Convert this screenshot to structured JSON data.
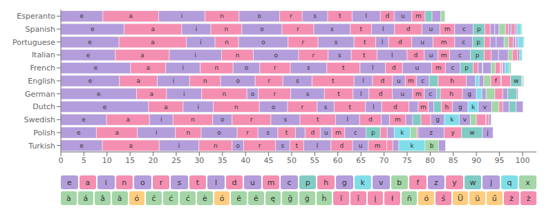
{
  "chart_data": {
    "type": "bar",
    "orientation": "horizontal",
    "stacked": true,
    "grid": false,
    "legend": "bottom",
    "categories": [
      "Esperanto",
      "Spanish",
      "Portuguese",
      "Italian",
      "French",
      "English",
      "German",
      "Dutch",
      "Swedish",
      "Polish",
      "Turkish"
    ],
    "xlim": [
      0,
      103
    ],
    "xticks": [
      0,
      5,
      10,
      15,
      20,
      25,
      30,
      35,
      40,
      45,
      50,
      55,
      60,
      65,
      70,
      75,
      80,
      85,
      90,
      95,
      100
    ],
    "series": [
      {
        "name": "e",
        "color": "#b39ddb",
        "values": [
          9.1,
          13.7,
          12.6,
          11.8,
          15.1,
          12.7,
          16.4,
          19.0,
          9.9,
          7.7,
          9.0
        ],
        "value_labels": [
          "e",
          "e",
          "e",
          "e",
          "e",
          "e",
          "e",
          "e",
          "e",
          "e",
          "e"
        ]
      },
      {
        "name": "a",
        "color": "#f48fb1",
        "values": [
          12.1,
          12.5,
          14.6,
          11.7,
          7.6,
          8.2,
          6.5,
          7.5,
          9.3,
          8.9,
          12.3
        ],
        "value_labels": [
          "a",
          "a",
          "a",
          "a",
          "a",
          "a",
          "a",
          "a",
          "a",
          "a",
          "a"
        ]
      },
      {
        "name": "i",
        "color": "#b39ddb",
        "values": [
          10.0,
          6.3,
          6.2,
          11.3,
          7.5,
          7.0,
          7.6,
          6.5,
          5.1,
          8.2,
          8.6
        ],
        "value_labels": [
          "i",
          "i",
          "i",
          "i",
          "i",
          "i",
          "i",
          "i",
          "i",
          "i",
          "i"
        ]
      },
      {
        "name": "n",
        "color": "#f48fb1",
        "values": [
          7.4,
          6.7,
          5.1,
          6.9,
          7.1,
          6.7,
          9.8,
          10.0,
          8.6,
          5.6,
          7.2
        ],
        "value_labels": [
          "n",
          "n",
          "n",
          "n",
          "n",
          "n",
          "n",
          "n",
          "n",
          "n",
          "n"
        ]
      },
      {
        "name": "o",
        "color": "#b39ddb",
        "values": [
          8.8,
          8.7,
          10.7,
          9.8,
          5.8,
          7.5,
          2.5,
          6.1,
          4.2,
          7.8,
          2.5
        ],
        "value_labels": [
          "o",
          "o",
          "o",
          "o",
          "o",
          "o",
          "o",
          "o",
          "o",
          "o",
          "o"
        ]
      },
      {
        "name": "r",
        "color": "#f48fb1",
        "values": [
          4.9,
          6.9,
          6.5,
          6.4,
          6.6,
          6.0,
          7.0,
          6.4,
          8.4,
          4.5,
          6.9
        ],
        "value_labels": [
          "r",
          "r",
          "r",
          "r",
          "r",
          "r",
          "r",
          "r",
          "r",
          "r",
          "r"
        ]
      },
      {
        "name": "s",
        "color": "#b39ddb",
        "values": [
          5.5,
          7.9,
          7.8,
          5.0,
          7.9,
          6.3,
          7.3,
          3.7,
          6.3,
          4.3,
          3.1
        ],
        "value_labels": [
          "s",
          "s",
          "s",
          "s",
          "s",
          "s",
          "s",
          "s",
          "s",
          "s",
          "s"
        ]
      },
      {
        "name": "t",
        "color": "#f48fb1",
        "values": [
          5.3,
          4.6,
          4.7,
          5.6,
          7.2,
          9.1,
          6.2,
          6.8,
          7.7,
          3.8,
          3.0
        ],
        "value_labels": [
          "t",
          "t",
          "t",
          "t",
          "t",
          "t",
          "t",
          "t",
          "t",
          "t",
          "t"
        ]
      },
      {
        "name": "l",
        "color": "#b39ddb",
        "values": [
          6.1,
          5.0,
          2.8,
          6.5,
          5.5,
          4.0,
          3.4,
          3.5,
          5.2,
          2.1,
          5.9
        ],
        "value_labels": [
          "l",
          "l",
          "l",
          "l",
          "l",
          "l",
          "l",
          "l",
          "l",
          null,
          "l"
        ]
      },
      {
        "name": "d",
        "color": "#f48fb1",
        "values": [
          3.0,
          5.9,
          5.0,
          3.7,
          3.7,
          4.3,
          5.1,
          5.9,
          4.7,
          3.3,
          4.7
        ],
        "value_labels": [
          "d",
          "d",
          "d",
          "d",
          "d",
          "d",
          "d",
          "d",
          "d",
          "d",
          "d"
        ]
      },
      {
        "name": "u",
        "color": "#b39ddb",
        "values": [
          3.8,
          3.9,
          4.6,
          3.0,
          6.3,
          2.8,
          4.4,
          2.0,
          1.8,
          2.5,
          3.4
        ],
        "value_labels": [
          "u",
          "u",
          "u",
          "u",
          "u",
          "u",
          "u",
          null,
          null,
          "u",
          "u"
        ]
      },
      {
        "name": "m",
        "color": "#f48fb1",
        "values": [
          2.9,
          3.2,
          4.7,
          2.5,
          3.0,
          2.4,
          2.5,
          2.2,
          3.5,
          2.8,
          4.0
        ],
        "value_labels": [
          "m",
          "m",
          "m",
          "m",
          "m",
          "m",
          "m",
          "m",
          "m",
          "m",
          "m"
        ]
      },
      {
        "name": "c",
        "color": "#b39ddb",
        "values": [
          0.0,
          4.0,
          3.9,
          4.5,
          3.2,
          2.8,
          2.7,
          1.2,
          1.5,
          4.6,
          0.0
        ],
        "value_labels": [
          null,
          "c",
          "c",
          "c",
          "c",
          "c",
          "c",
          null,
          null,
          "c",
          null
        ]
      },
      {
        "name": "p",
        "color": "#80cbc4",
        "values": [
          1.5,
          2.5,
          2.5,
          3.0,
          2.8,
          1.9,
          0.8,
          1.6,
          1.8,
          3.1,
          0.0
        ],
        "value_labels": [
          null,
          "p",
          "p",
          "p",
          "p",
          null,
          null,
          null,
          null,
          "p",
          null
        ]
      },
      {
        "name": "h",
        "color": "#f48fb1",
        "values": [
          0.0,
          1.2,
          1.3,
          1.5,
          1.1,
          6.1,
          4.8,
          2.4,
          2.1,
          1.5,
          1.3
        ],
        "value_labels": [
          null,
          null,
          null,
          null,
          null,
          "h",
          "h",
          "h",
          null,
          null,
          null
        ]
      },
      {
        "name": "g",
        "color": "#b39ddb",
        "values": [
          0.0,
          1.0,
          1.3,
          1.6,
          0.9,
          2.0,
          3.0,
          3.4,
          3.0,
          1.5,
          1.3
        ],
        "value_labels": [
          null,
          null,
          null,
          null,
          null,
          null,
          "g",
          "g",
          "g",
          null,
          null
        ]
      },
      {
        "name": "k",
        "color": "#80deea",
        "values": [
          0.0,
          0.0,
          0.0,
          0.0,
          0.1,
          0.8,
          1.2,
          2.2,
          3.2,
          3.5,
          5.7
        ],
        "value_labels": [
          null,
          null,
          null,
          null,
          null,
          null,
          null,
          "k",
          "k",
          "k",
          "k"
        ]
      },
      {
        "name": "v",
        "color": "#b39ddb",
        "values": [
          1.9,
          0.9,
          1.7,
          2.1,
          1.8,
          1.0,
          0.9,
          2.9,
          2.4,
          0.0,
          0.0
        ],
        "value_labels": [
          null,
          null,
          null,
          null,
          null,
          null,
          null,
          "v",
          "v",
          null,
          null
        ]
      },
      {
        "name": "b",
        "color": "#a5d6a7",
        "values": [
          0.9,
          1.4,
          1.0,
          0.9,
          0.9,
          1.5,
          1.9,
          1.6,
          1.3,
          1.4,
          2.9
        ],
        "value_labels": [
          null,
          null,
          null,
          null,
          null,
          null,
          null,
          null,
          null,
          null,
          "b"
        ]
      },
      {
        "name": "f",
        "color": "#f48fb1",
        "values": [
          0.0,
          0.7,
          1.0,
          1.1,
          1.1,
          2.2,
          1.7,
          0.8,
          2.0,
          0.3,
          0.0
        ],
        "value_labels": [
          null,
          null,
          null,
          null,
          null,
          "f",
          null,
          null,
          null,
          null,
          null
        ]
      },
      {
        "name": "z",
        "color": "#b39ddb",
        "values": [
          0.0,
          0.5,
          0.5,
          0.5,
          0.1,
          0.1,
          1.1,
          1.4,
          0.1,
          5.6,
          1.5
        ],
        "value_labels": [
          null,
          null,
          null,
          null,
          null,
          null,
          null,
          null,
          null,
          "z",
          null
        ]
      },
      {
        "name": "y",
        "color": "#f48fb1",
        "values": [
          0.0,
          0.9,
          0.1,
          0.0,
          0.3,
          2.0,
          0.0,
          0.0,
          0.6,
          3.8,
          0.0
        ],
        "value_labels": [
          null,
          null,
          null,
          null,
          null,
          null,
          null,
          null,
          null,
          "y",
          null
        ]
      },
      {
        "name": "w",
        "color": "#80cbc4",
        "values": [
          0.0,
          0.0,
          0.0,
          0.0,
          0.1,
          2.4,
          1.9,
          1.5,
          0.0,
          4.5,
          0.0
        ],
        "value_labels": [
          null,
          null,
          null,
          null,
          null,
          "w",
          null,
          null,
          null,
          "w",
          null
        ]
      },
      {
        "name": "j",
        "color": "#b39ddb",
        "values": [
          0.0,
          0.4,
          0.4,
          0.0,
          0.5,
          0.2,
          0.3,
          1.5,
          0.5,
          2.3,
          0.0
        ],
        "value_labels": [
          null,
          null,
          null,
          null,
          null,
          null,
          null,
          null,
          null,
          "j",
          null
        ]
      },
      {
        "name": "q",
        "color": "#80deea",
        "values": [
          0.0,
          0.9,
          1.2,
          0.5,
          0.9,
          0.1,
          0.0,
          0.0,
          0.0,
          0.0,
          0.0
        ],
        "value_labels": [
          null,
          null,
          null,
          null,
          null,
          null,
          null,
          null,
          null,
          null,
          null
        ]
      },
      {
        "name": "x",
        "color": "#a5d6a7",
        "values": [
          0.0,
          0.2,
          0.2,
          0.0,
          0.4,
          0.2,
          0.0,
          0.0,
          0.1,
          0.0,
          0.0
        ],
        "value_labels": [
          null,
          null,
          null,
          null,
          null,
          null,
          null,
          null,
          null,
          null,
          null
        ]
      }
    ],
    "annotations": [
      {
        "text": "à",
        "color": "#a5d6a7"
      },
      {
        "text": "á",
        "color": "#a5d6a7"
      },
      {
        "text": "â",
        "color": "#a5d6a7"
      },
      {
        "text": "ã",
        "color": "#a5d6a7"
      },
      {
        "text": "ó",
        "color": "#ffcc80"
      },
      {
        "text": "č",
        "color": "#a5d6a7"
      },
      {
        "text": "ć",
        "color": "#a5d6a7"
      },
      {
        "text": "ć",
        "color": "#a5d6a7"
      },
      {
        "text": "è",
        "color": "#a5d6a7"
      },
      {
        "text": "ó",
        "color": "#ffcc80"
      },
      {
        "text": "ë",
        "color": "#a5d6a7"
      },
      {
        "text": "ê",
        "color": "#a5d6a7"
      },
      {
        "text": "ę",
        "color": "#a5d6a7"
      },
      {
        "text": "ğ",
        "color": "#a5d6a7"
      },
      {
        "text": "ġ",
        "color": "#a5d6a7"
      },
      {
        "text": "ḣ",
        "color": "#a5d6a7"
      },
      {
        "text": "ï",
        "color": "#f48fb1"
      },
      {
        "text": "ī",
        "color": "#f48fb1"
      },
      {
        "text": "į",
        "color": "#f48fb1"
      },
      {
        "text": "ł",
        "color": "#f48fb1"
      },
      {
        "text": "ñ",
        "color": "#a5d6a7"
      },
      {
        "text": "ó",
        "color": "#ffcc80"
      },
      {
        "text": "ś",
        "color": "#f48fb1"
      },
      {
        "text": "Ü",
        "color": "#ffcc80"
      },
      {
        "text": "ü",
        "color": "#ffcc80"
      },
      {
        "text": "ű",
        "color": "#ffcc80"
      },
      {
        "text": "ż",
        "color": "#f48fb1"
      },
      {
        "text": "ż",
        "color": "#f48fb1"
      }
    ]
  }
}
